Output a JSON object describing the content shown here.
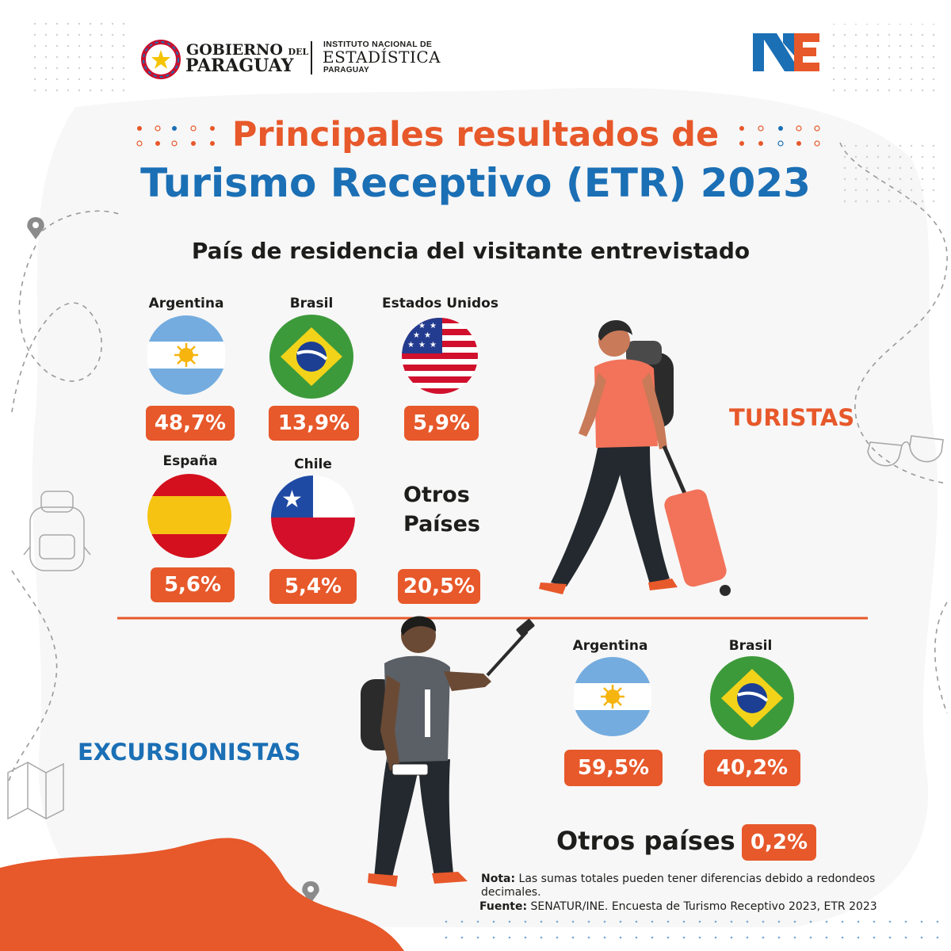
{
  "header": {
    "gobierno_line1": "GOBIERNO",
    "gobierno_del": "DEL",
    "gobierno_line2": "PARAGUAY",
    "ine_line1": "INSTITUTO NACIONAL DE",
    "ine_line2": "ESTADÍSTICA",
    "ine_line3": "PARAGUAY",
    "ine_logo_icon": "ine-logo"
  },
  "title": {
    "line1": "Principales resultados de",
    "line2": "Turismo Receptivo (ETR) 2023"
  },
  "subtitle": "País de residencia del visitante entrevistado",
  "turistas": {
    "label": "TURISTAS",
    "countries": [
      {
        "name": "Argentina",
        "pct": "48,7%",
        "flag": "argentina-flag"
      },
      {
        "name": "Brasil",
        "pct": "13,9%",
        "flag": "brazil-flag"
      },
      {
        "name": "Estados Unidos",
        "pct": "5,9%",
        "flag": "usa-flag"
      },
      {
        "name": "España",
        "pct": "5,6%",
        "flag": "spain-flag"
      },
      {
        "name": "Chile",
        "pct": "5,4%",
        "flag": "chile-flag"
      }
    ],
    "otros_line1": "Otros",
    "otros_line2": "Países",
    "otros_pct": "20,5%"
  },
  "excursionistas": {
    "label": "EXCURSIONISTAS",
    "countries": [
      {
        "name": "Argentina",
        "pct": "59,5%",
        "flag": "argentina-flag"
      },
      {
        "name": "Brasil",
        "pct": "40,2%",
        "flag": "brazil-flag"
      }
    ],
    "otros_label": "Otros países",
    "otros_pct": "0,2%"
  },
  "footer": {
    "nota_label": "Nota:",
    "nota_text": "Las sumas totales pueden tener diferencias debido a redondeos decimales.",
    "fuente_label": "Fuente:",
    "fuente_text": "SENATUR/INE. Encuesta de Turismo Receptivo 2023, ETR 2023"
  },
  "colors": {
    "accent_orange": "#e7582a",
    "accent_blue": "#1b6fb5",
    "text_dark": "#1d1d1b"
  }
}
